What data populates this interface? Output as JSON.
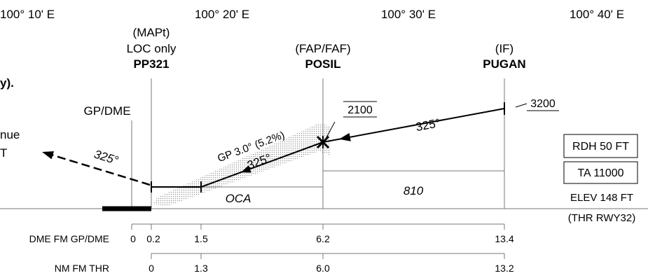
{
  "longitudes": [
    "100° 10' E",
    "100° 20' E",
    "100° 30' E",
    "100° 40' E"
  ],
  "fixes": {
    "mapt": {
      "role": "(MAPt)",
      "note": "LOC only",
      "name": "PP321"
    },
    "faf": {
      "role": "(FAP/FAF)",
      "name": "POSIL",
      "altitude": "2100"
    },
    "if": {
      "role": "(IF)",
      "name": "PUGAN",
      "altitude": "3200"
    }
  },
  "gp_dme": "GP/DME",
  "clipped_text": {
    "title_tail": "y).",
    "missed_line_1": "nue",
    "missed_line_2": "T"
  },
  "tracks": {
    "intermediate": "325°",
    "final": "325°",
    "missed_approach": "325°"
  },
  "glide_path": "GP 3.0° (5.2%)",
  "segments": {
    "final_label": "OCA",
    "intermediate_label": "810"
  },
  "aerodrome": {
    "rdh": "RDH 50 FT",
    "ta": "TA 11000",
    "elevation": "ELEV 148 FT",
    "reference": "(THR RWY32)"
  },
  "scales": {
    "dme": {
      "label": "DME FM GP/DME",
      "marks": [
        "0",
        "0.2",
        "1.5",
        "6.2",
        "13.4"
      ]
    },
    "threshold": {
      "label": "NM FM THR",
      "marks": [
        "0",
        "1.3",
        "6.0",
        "13.2"
      ]
    }
  },
  "colors": {
    "ink": "#000000",
    "rule": "#777777",
    "hatch": "#9a9a9a",
    "stipple": "#9a9a9a"
  }
}
